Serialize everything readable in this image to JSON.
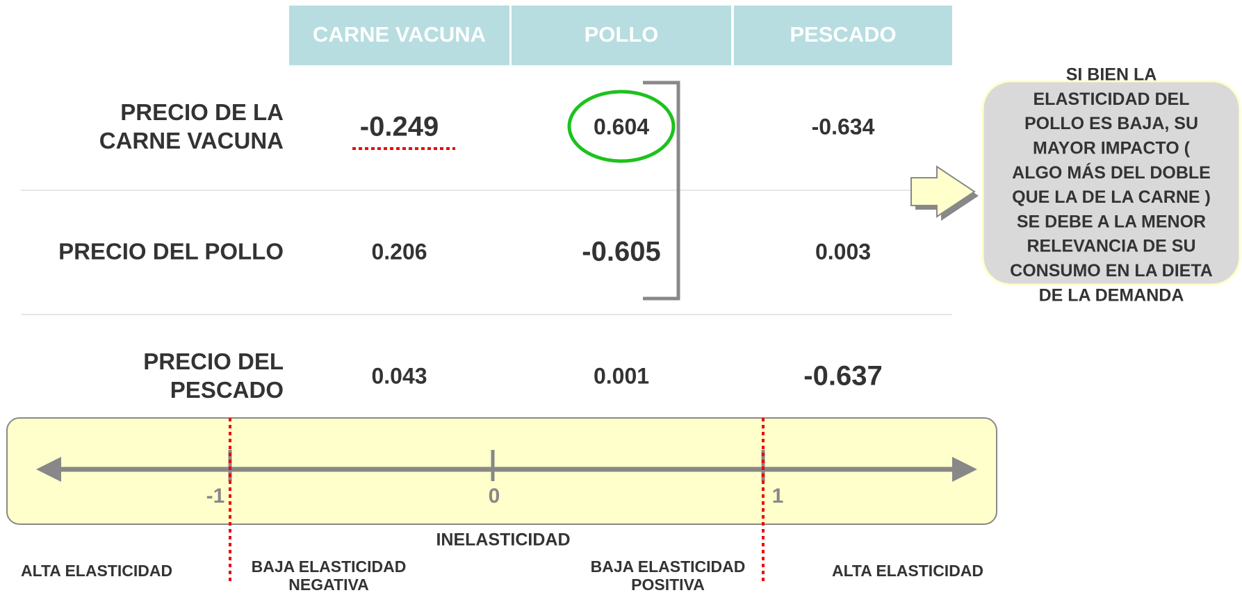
{
  "header": {
    "columns": [
      "CARNE VACUNA",
      "POLLO",
      "PESCADO"
    ]
  },
  "table": {
    "rows": [
      {
        "label": [
          "PRECIO DE LA",
          "CARNE VACUNA"
        ],
        "values": [
          "-0.249",
          "0.604",
          "-0.634"
        ]
      },
      {
        "label": [
          "PRECIO DEL POLLO"
        ],
        "values": [
          "0.206",
          "-0.605",
          "0.003"
        ]
      },
      {
        "label": [
          "PRECIO DEL",
          "PESCADO"
        ],
        "values": [
          "0.043",
          "0.001",
          "-0.637"
        ]
      }
    ]
  },
  "callout": {
    "lines": [
      "SI BIEN LA",
      "ELASTICIDAD DEL",
      "POLLO ES  BAJA, SU",
      "MAYOR IMPACTO (",
      "ALGO MÁS DEL DOBLE",
      "QUE LA DE LA CARNE )",
      "SE DEBE A LA MENOR",
      "RELEVANCIA DE SU",
      "CONSUMO EN LA DIETA",
      "DE LA DEMANDA"
    ]
  },
  "scale": {
    "ticks": [
      "-1",
      "0",
      "1"
    ],
    "title": "INELASTICIDAD",
    "zones": [
      [
        "ALTA ELASTICIDAD"
      ],
      [
        "BAJA ELASTICIDAD",
        "NEGATIVA"
      ],
      [
        "BAJA ELASTICIDAD",
        "POSITIVA"
      ],
      [
        "ALTA ELASTICIDAD"
      ]
    ]
  }
}
